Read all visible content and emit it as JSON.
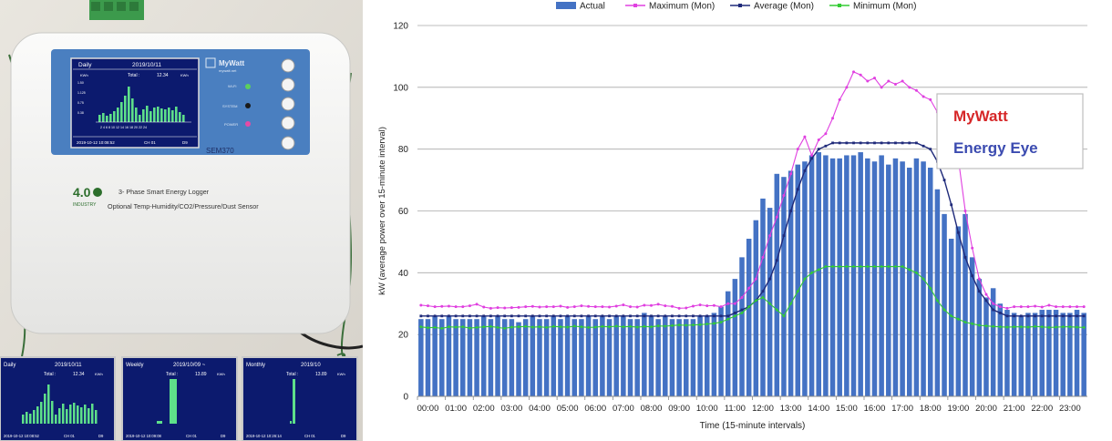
{
  "photo": {
    "device_brand": "MyWatt",
    "device_brand_sub": "mywatt.net",
    "device_model": "SEM370",
    "logo_text": "4.0",
    "logo_sub": "INDUSTRY",
    "desc_line1": "3- Phase Smart Energy Logger",
    "desc_line2": "Optional Temp-Humidity/CO2/Pressure/Dust Sensor",
    "status_labels": [
      "Wi-Fi",
      "SYSTEM",
      "POWER"
    ],
    "main_screen": {
      "title": "Daily",
      "date": "2019/10/11",
      "unit": "KWh",
      "total_label": "Total :",
      "total_value": "12.34",
      "total_unit": "KWh",
      "yticks": [
        "1.50",
        "1.125",
        "0.75",
        "0.38"
      ],
      "xticks": "2 4 6 8 10 12 14 16 18 20 22 24",
      "footer_time": "2019-10-12 10:08:52",
      "footer_ch": "CH 01",
      "footer_id": "D9"
    },
    "thumbs": [
      {
        "title": "Daily",
        "date": "2019/10/11",
        "total_label": "Total :",
        "total_value": "12.34",
        "total_unit": "KWh",
        "footer_time": "2019-10-12 10:08:52",
        "footer_ch": "CH 01",
        "footer_id": "D9"
      },
      {
        "title": "Weekly",
        "date": "2019/10/09 ~",
        "total_label": "Total :",
        "total_value": "13.89",
        "total_unit": "KWh",
        "footer_time": "2019-10-12 10:09:08",
        "footer_ch": "CH 01",
        "footer_id": "D9"
      },
      {
        "title": "Monthly",
        "date": "2019/10",
        "total_label": "Total :",
        "total_value": "13.89",
        "total_unit": "KWh",
        "footer_time": "2019-10-12 10:26:14",
        "footer_ch": "CH 01",
        "footer_id": "D9"
      }
    ]
  },
  "overlay": {
    "line1": "MyWatt",
    "line2": "Energy Eye",
    "color1": "#d62728",
    "color2": "#3b4bb0"
  },
  "colors": {
    "actual": "#4472c4",
    "maximum": "#e040e0",
    "average": "#1f2a7a",
    "minimum": "#33cc33"
  },
  "chart_data": {
    "type": "bar",
    "xlabel": "Time (15-minute intervals)",
    "ylabel": "kW (average power over 15-minute interval)",
    "ylim": [
      0,
      120
    ],
    "yticks": [
      0,
      20,
      40,
      60,
      80,
      100,
      120
    ],
    "grid": true,
    "legend_position": "top",
    "x_tick_labels": [
      "00:00",
      "01:00",
      "02:00",
      "03:00",
      "04:00",
      "05:00",
      "06:00",
      "07:00",
      "08:00",
      "09:00",
      "10:00",
      "11:00",
      "12:00",
      "13:00",
      "14:00",
      "15:00",
      "16:00",
      "17:00",
      "18:00",
      "19:00",
      "20:00",
      "21:00",
      "22:00",
      "23:00"
    ],
    "interval_count": 96,
    "series": [
      {
        "name": "Actual",
        "type": "bar",
        "values": [
          25,
          25,
          26,
          25,
          26,
          25,
          25,
          25,
          25,
          26,
          25,
          26,
          25,
          25,
          24,
          25,
          26,
          25,
          25,
          26,
          25,
          26,
          25,
          25,
          26,
          25,
          26,
          25,
          26,
          26,
          25,
          25,
          27,
          26,
          25,
          26,
          25,
          25,
          25,
          25,
          26,
          26,
          27,
          29,
          34,
          38,
          45,
          51,
          57,
          64,
          61,
          72,
          71,
          73,
          75,
          76,
          78,
          79,
          78,
          77,
          77,
          78,
          78,
          79,
          77,
          76,
          78,
          75,
          77,
          76,
          74,
          77,
          76,
          74,
          67,
          59,
          51,
          55,
          59,
          45,
          38,
          32,
          35,
          30,
          28,
          27,
          26,
          27,
          27,
          28,
          28,
          28,
          27,
          27,
          28,
          27
        ]
      },
      {
        "name": "Maximum (Mon)",
        "type": "line",
        "values": [
          29.5,
          29.3,
          29.0,
          29.1,
          29.2,
          29.0,
          29.0,
          29.3,
          29.8,
          28.9,
          28.5,
          28.7,
          28.6,
          28.7,
          28.8,
          29.0,
          29.1,
          28.9,
          29.0,
          29.0,
          29.2,
          28.8,
          29.0,
          29.3,
          29.1,
          29.0,
          29.0,
          28.9,
          29.2,
          29.6,
          29.0,
          28.9,
          29.5,
          29.4,
          29.8,
          29.3,
          29.1,
          28.5,
          28.6,
          29.2,
          29.6,
          29.3,
          29.4,
          29.0,
          30.0,
          30.0,
          32.0,
          35.0,
          38.0,
          45.0,
          52.0,
          58.0,
          65.0,
          72.0,
          80.0,
          84.0,
          78.0,
          83.0,
          85.0,
          90.0,
          96.0,
          100.0,
          105.0,
          104.0,
          102.0,
          103.0,
          100.0,
          102.0,
          101.0,
          102.0,
          100.0,
          99.0,
          97.0,
          96.0,
          92.0,
          86.0,
          76.0,
          77.0,
          60.0,
          48.0,
          38.0,
          33.0,
          30.0,
          29.0,
          28.5,
          29.0,
          29.0,
          29.0,
          29.2,
          28.9,
          29.5,
          29.0,
          29.0,
          29.0,
          29.0,
          29.0
        ]
      },
      {
        "name": "Average (Mon)",
        "type": "line",
        "values": [
          26,
          26,
          26,
          26,
          26,
          26,
          26,
          26,
          26,
          26,
          26,
          26,
          26,
          26,
          26,
          26,
          26,
          26,
          26,
          26,
          26,
          26,
          26,
          26,
          26,
          26,
          26,
          26,
          26,
          26,
          26,
          26,
          26,
          26,
          26,
          26,
          26,
          26,
          26,
          26,
          26,
          26,
          26,
          26,
          26,
          27,
          28,
          29,
          31,
          34,
          38,
          44,
          52,
          60,
          67,
          73,
          77,
          80,
          81,
          82,
          82,
          82,
          82,
          82,
          82,
          82,
          82,
          82,
          82,
          82,
          82,
          82,
          81,
          80,
          76,
          70,
          62,
          53,
          45,
          39,
          34,
          31,
          28,
          27,
          26,
          26,
          26,
          26,
          26,
          26,
          26,
          26,
          26,
          26,
          26,
          26
        ]
      },
      {
        "name": "Minimum (Mon)",
        "type": "line",
        "values": [
          22.5,
          22.2,
          22.3,
          22.0,
          22.5,
          22.4,
          22.5,
          22.1,
          22.3,
          22.5,
          22.6,
          22.3,
          22.0,
          22.4,
          22.5,
          22.6,
          22.4,
          22.5,
          22.3,
          22.6,
          22.5,
          22.4,
          22.7,
          22.5,
          22.3,
          22.4,
          22.6,
          22.5,
          22.7,
          22.5,
          22.6,
          22.4,
          22.6,
          22.5,
          22.8,
          22.7,
          22.9,
          23.1,
          23.0,
          23.1,
          23.2,
          23.4,
          23.6,
          24.0,
          25.0,
          26.0,
          27.0,
          29.0,
          31.0,
          32.0,
          30.0,
          28.0,
          26.0,
          30.0,
          34.0,
          38.0,
          40.0,
          41.0,
          42.0,
          42.0,
          42.0,
          42.0,
          42.0,
          42.0,
          42.0,
          42.0,
          42.0,
          42.0,
          42.0,
          42.0,
          41.0,
          40.0,
          38.0,
          35.0,
          31.0,
          28.0,
          26.0,
          25.0,
          24.0,
          23.5,
          23.0,
          22.8,
          22.6,
          22.5,
          22.4,
          22.5,
          22.5,
          22.4,
          22.6,
          22.5,
          22.3,
          22.4,
          22.5,
          22.5,
          22.4,
          22.3
        ]
      }
    ]
  }
}
